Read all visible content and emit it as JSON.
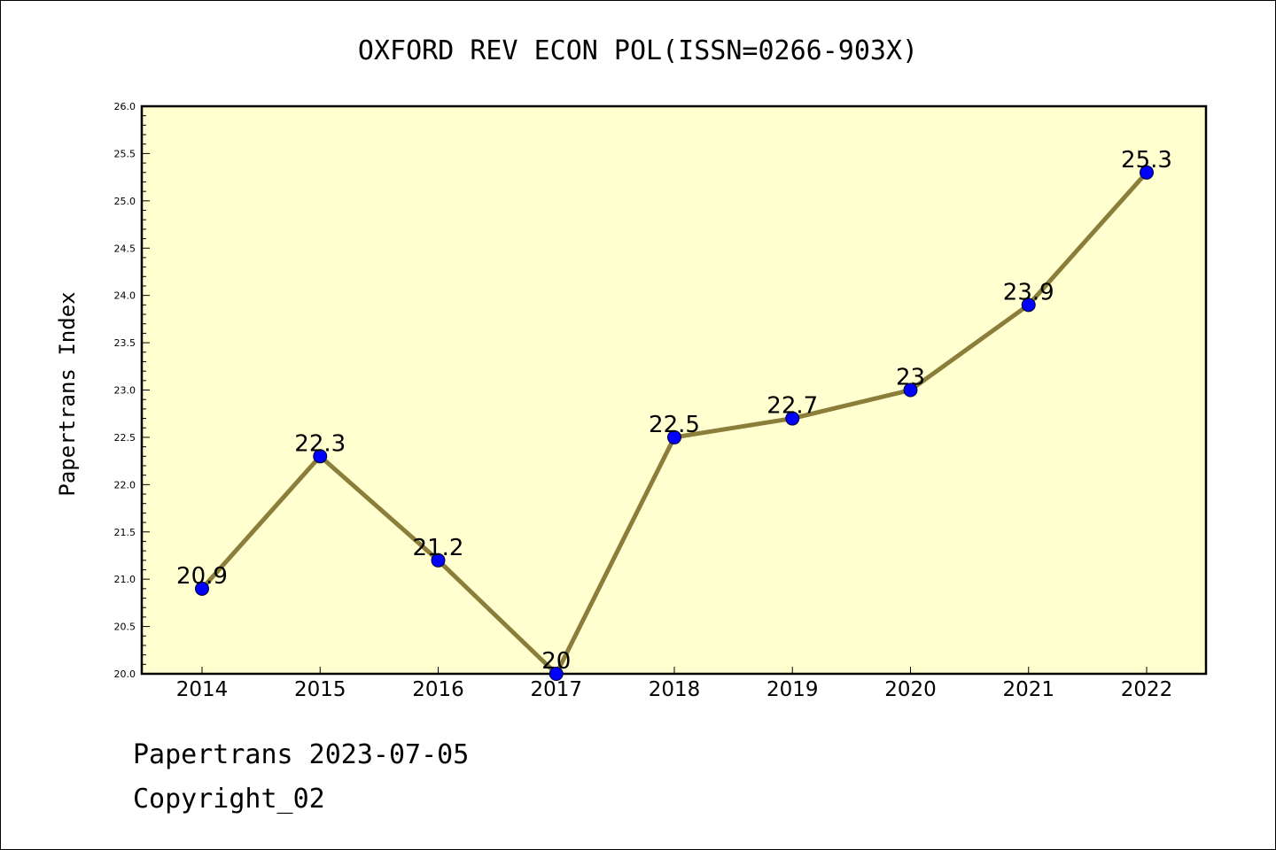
{
  "chart_data": {
    "type": "line",
    "title": "OXFORD REV ECON POL(ISSN=0266-903X)",
    "xlabel": "",
    "ylabel": "Papertrans Index",
    "categories": [
      "2014",
      "2015",
      "2016",
      "2017",
      "2018",
      "2019",
      "2020",
      "2021",
      "2022"
    ],
    "series": [
      {
        "values": [
          20.9,
          22.3,
          21.2,
          20.0,
          22.5,
          22.7,
          23.0,
          23.9,
          25.3
        ],
        "data_labels": [
          "20.9",
          "22.3",
          "21.2",
          "20",
          "22.5",
          "22.7",
          "23",
          "23.9",
          "25.3"
        ]
      }
    ],
    "ylim": [
      20.0,
      26.0
    ],
    "yticks": [
      "20.0",
      "20.5",
      "21.0",
      "21.5",
      "22.0",
      "22.5",
      "23.0",
      "23.5",
      "24.0",
      "24.5",
      "25.0",
      "25.5",
      "26.0"
    ],
    "grid": false,
    "colors": {
      "plot_background": "#ffffd0",
      "line": "#8b7d3a",
      "marker": "#0000ff"
    }
  },
  "footer": {
    "line1": "Papertrans 2023-07-05",
    "line2": "Copyright_02"
  }
}
